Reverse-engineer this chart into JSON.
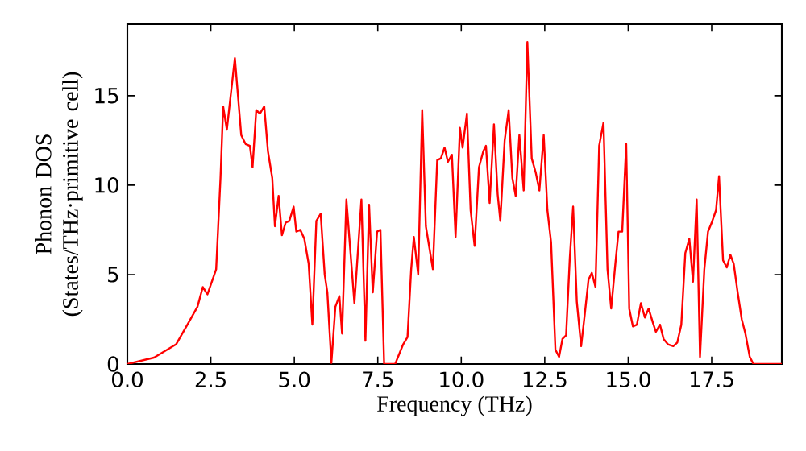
{
  "chart_data": {
    "type": "line",
    "xlabel": "Frequency (THz)",
    "ylabel": "Phonon DOS (States/THz·primitive cell)",
    "xlim": [
      0,
      19.6
    ],
    "ylim": [
      0,
      19
    ],
    "xticks": [
      {
        "value": 0,
        "label": "0.0"
      },
      {
        "value": 2.5,
        "label": "2.5"
      },
      {
        "value": 5,
        "label": "5.0"
      },
      {
        "value": 7.5,
        "label": "7.5"
      },
      {
        "value": 10,
        "label": "10.0"
      },
      {
        "value": 12.5,
        "label": "12.5"
      },
      {
        "value": 15,
        "label": "15.0"
      },
      {
        "value": 17.5,
        "label": "17.5"
      }
    ],
    "yticks": [
      0,
      5,
      10,
      15
    ],
    "grid": false,
    "legend": false,
    "marker": "none",
    "line_style": "solid",
    "series": [
      {
        "color": "#ff0000",
        "x": [
          0,
          0.8,
          1.46,
          1.86,
          2.1,
          2.26,
          2.4,
          2.66,
          2.79,
          2.87,
          2.98,
          3.22,
          3.41,
          3.54,
          3.67,
          3.75,
          3.86,
          3.97,
          4.1,
          4.21,
          4.34,
          4.42,
          4.53,
          4.63,
          4.74,
          4.85,
          4.98,
          5.06,
          5.18,
          5.3,
          5.43,
          5.54,
          5.66,
          5.79,
          5.91,
          5.99,
          6.11,
          6.23,
          6.35,
          6.43,
          6.56,
          6.8,
          7.01,
          7.13,
          7.24,
          7.35,
          7.48,
          7.58,
          7.69,
          8.02,
          8.26,
          8.39,
          8.5,
          8.58,
          8.71,
          8.83,
          8.94,
          9.15,
          9.28,
          9.39,
          9.5,
          9.6,
          9.72,
          9.83,
          9.96,
          10.04,
          10.17,
          10.28,
          10.4,
          10.53,
          10.66,
          10.74,
          10.85,
          10.98,
          11.09,
          11.17,
          11.3,
          11.42,
          11.53,
          11.63,
          11.74,
          11.87,
          11.98,
          12.11,
          12.23,
          12.34,
          12.47,
          12.58,
          12.69,
          12.82,
          12.93,
          13.03,
          13.14,
          13.25,
          13.35,
          13.46,
          13.59,
          13.7,
          13.81,
          13.91,
          14.02,
          14.13,
          14.26,
          14.38,
          14.49,
          14.62,
          14.71,
          14.82,
          14.94,
          15.03,
          15.14,
          15.26,
          15.38,
          15.5,
          15.61,
          15.74,
          15.83,
          15.95,
          16.06,
          16.19,
          16.35,
          16.47,
          16.59,
          16.71,
          16.83,
          16.94,
          17.05,
          17.15,
          17.28,
          17.39,
          17.5,
          17.63,
          17.72,
          17.84,
          17.95,
          18.06,
          18.16,
          18.27,
          18.4,
          18.51,
          18.64,
          18.75,
          19.6
        ],
        "values": [
          0,
          0.36,
          1.1,
          2.4,
          3.2,
          4.3,
          3.9,
          5.3,
          10.4,
          14.4,
          13.1,
          17.1,
          12.8,
          12.3,
          12.2,
          11.0,
          14.2,
          14.0,
          14.4,
          11.9,
          10.4,
          7.7,
          9.4,
          7.2,
          7.9,
          8.0,
          8.8,
          7.4,
          7.5,
          7.0,
          5.6,
          2.2,
          8.0,
          8.4,
          5.0,
          4.0,
          0.06,
          3.2,
          3.8,
          1.7,
          9.2,
          3.4,
          9.2,
          1.3,
          8.9,
          4.0,
          7.4,
          7.5,
          0,
          0,
          1.1,
          1.5,
          5.3,
          7.1,
          5.0,
          14.2,
          7.7,
          5.3,
          11.4,
          11.5,
          12.1,
          11.3,
          11.7,
          7.1,
          13.2,
          12.1,
          14.0,
          8.6,
          6.6,
          11.0,
          11.9,
          12.2,
          9.0,
          13.4,
          9.5,
          8.0,
          12.5,
          14.2,
          10.4,
          9.4,
          12.8,
          9.7,
          18.0,
          11.5,
          10.7,
          9.7,
          12.8,
          8.6,
          6.8,
          0.8,
          0.4,
          1.4,
          1.6,
          5.9,
          8.8,
          3.5,
          1.0,
          2.8,
          4.7,
          5.1,
          4.3,
          12.2,
          13.5,
          5.3,
          3.1,
          5.7,
          7.4,
          7.4,
          12.3,
          3.1,
          2.1,
          2.2,
          3.4,
          2.6,
          3.1,
          2.3,
          1.8,
          2.2,
          1.4,
          1.1,
          1.0,
          1.2,
          2.2,
          6.2,
          7.0,
          4.6,
          9.2,
          0.4,
          5.3,
          7.4,
          7.9,
          8.6,
          10.5,
          5.8,
          5.4,
          6.1,
          5.6,
          4.1,
          2.5,
          1.7,
          0.4,
          0,
          0
        ]
      }
    ]
  }
}
